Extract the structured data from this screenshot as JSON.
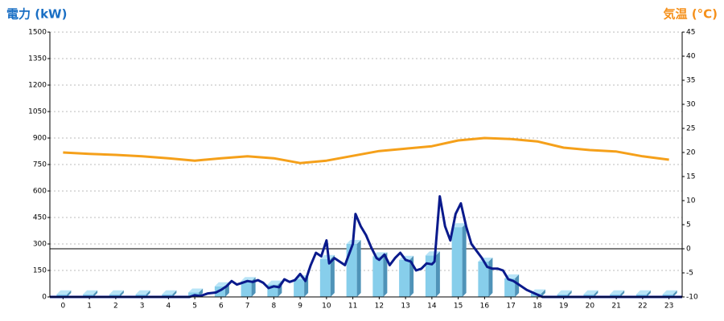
{
  "chart_data": {
    "type": "combo",
    "y_title": "電力 (kW)",
    "y2_title": "気温 (°C)",
    "xlim": [
      -0.5,
      23.5
    ],
    "xticks": [
      0,
      1,
      2,
      3,
      4,
      5,
      6,
      7,
      8,
      9,
      10,
      11,
      12,
      13,
      14,
      15,
      16,
      17,
      18,
      19,
      20,
      21,
      22,
      23
    ],
    "ylim": [
      0,
      1500
    ],
    "yticks": [
      0,
      150,
      300,
      450,
      600,
      750,
      900,
      1050,
      1200,
      1350,
      1500
    ],
    "y2lim": [
      -10,
      45
    ],
    "y2ticks": [
      -10,
      -5,
      0,
      5,
      10,
      15,
      20,
      25,
      30,
      35,
      40,
      45
    ],
    "grid": true,
    "y2_zero_line": 0,
    "series": [
      {
        "type": "bar",
        "color": "#87ceeb",
        "x": [
          0,
          1,
          2,
          3,
          4,
          5,
          6,
          7,
          8,
          9,
          10,
          11,
          12,
          13,
          14,
          15,
          16,
          17,
          18,
          19,
          20,
          21,
          22,
          23
        ],
        "values": [
          15,
          15,
          15,
          15,
          15,
          25,
          60,
          90,
          70,
          100,
          215,
          300,
          230,
          210,
          235,
          395,
          200,
          105,
          20,
          15,
          15,
          15,
          15,
          15
        ]
      },
      {
        "type": "line",
        "color": "#0a1a8c",
        "x": [
          -0.5,
          4.8,
          5.0,
          5.2,
          5.5,
          5.8,
          6.0,
          6.2,
          6.4,
          6.6,
          6.8,
          7.0,
          7.2,
          7.4,
          7.6,
          7.8,
          8.0,
          8.2,
          8.4,
          8.6,
          8.8,
          9.0,
          9.2,
          9.4,
          9.6,
          9.8,
          10.0,
          10.1,
          10.3,
          10.5,
          10.7,
          10.9,
          11.0,
          11.1,
          11.3,
          11.5,
          11.7,
          11.9,
          12.0,
          12.2,
          12.4,
          12.6,
          12.8,
          13.0,
          13.2,
          13.4,
          13.6,
          13.8,
          14.0,
          14.1,
          14.3,
          14.5,
          14.7,
          14.9,
          15.1,
          15.3,
          15.5,
          15.7,
          15.9,
          16.1,
          16.3,
          16.5,
          16.7,
          16.9,
          17.1,
          17.3,
          17.6,
          17.9,
          18.2,
          23.5
        ],
        "values": [
          0,
          0,
          10,
          5,
          20,
          25,
          40,
          60,
          90,
          70,
          80,
          90,
          85,
          95,
          80,
          50,
          60,
          55,
          100,
          85,
          95,
          130,
          90,
          180,
          250,
          230,
          320,
          190,
          220,
          200,
          180,
          260,
          300,
          470,
          400,
          350,
          280,
          220,
          210,
          240,
          180,
          220,
          250,
          210,
          200,
          150,
          160,
          190,
          185,
          200,
          570,
          400,
          320,
          470,
          530,
          400,
          300,
          260,
          220,
          170,
          160,
          160,
          150,
          100,
          90,
          70,
          40,
          20,
          0,
          0
        ]
      },
      {
        "type": "line",
        "axis": "y2",
        "color": "#f5a01a",
        "x": [
          0,
          1,
          2,
          3,
          4,
          5,
          6,
          7,
          8,
          9,
          10,
          11,
          12,
          13,
          14,
          15,
          16,
          17,
          18,
          19,
          20,
          21,
          22,
          23
        ],
        "values": [
          20,
          19.7,
          19.5,
          19.2,
          18.8,
          18.3,
          18.8,
          19.2,
          18.8,
          17.8,
          18.3,
          19.3,
          20.3,
          20.8,
          21.3,
          22.5,
          23,
          22.8,
          22.3,
          21,
          20.5,
          20.2,
          19.2,
          18.5
        ]
      }
    ]
  }
}
